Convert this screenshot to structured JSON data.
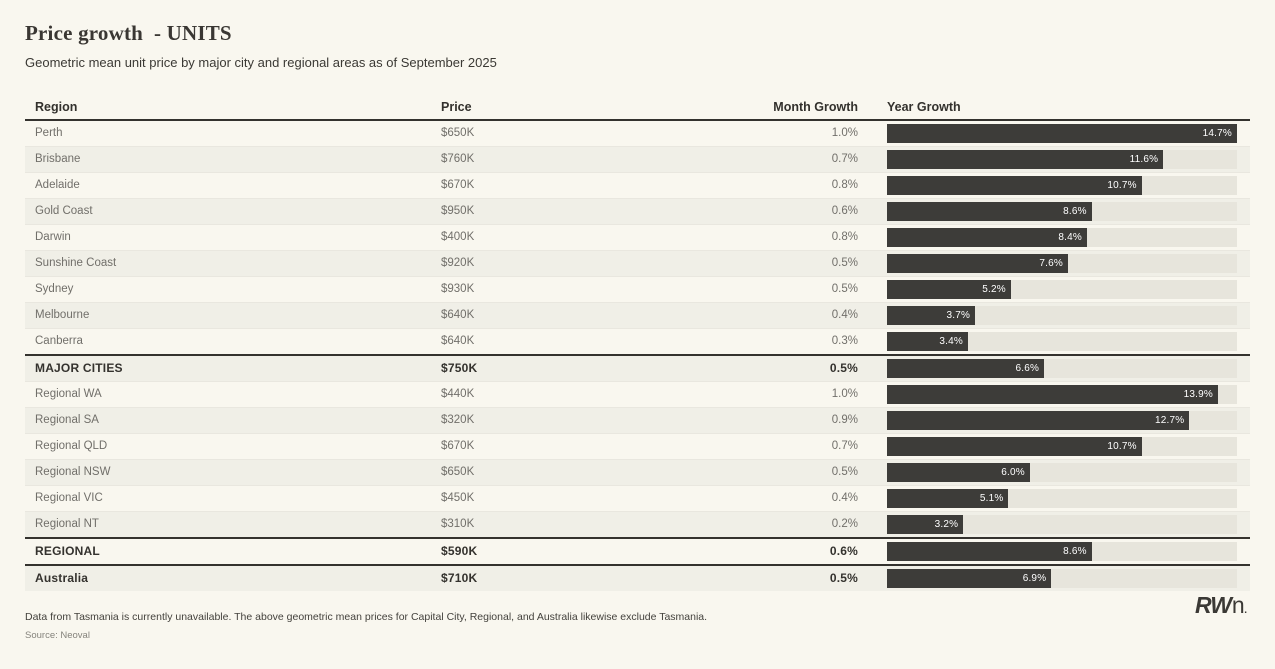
{
  "page": {
    "title": "Price growth  - UNITS",
    "subtitle": "Geometric mean unit price by major city and regional areas as of September 2025",
    "footnote": "Data from Tasmania is currently unavailable. The above geometric mean prices for Capital City, Regional, and Australia likewise exclude Tasmania.",
    "source": "Source: Neoval",
    "logo_bold": "RW",
    "logo_light": "n",
    "logo_dot": "."
  },
  "table": {
    "columns": [
      "Region",
      "Price",
      "Month Growth",
      "Year Growth"
    ],
    "rows": [
      {
        "region": "Perth",
        "price": "$650K",
        "month": "1.0%",
        "year": 14.7,
        "year_label": "14.7%",
        "emphasis": false
      },
      {
        "region": "Brisbane",
        "price": "$760K",
        "month": "0.7%",
        "year": 11.6,
        "year_label": "11.6%",
        "emphasis": false
      },
      {
        "region": "Adelaide",
        "price": "$670K",
        "month": "0.8%",
        "year": 10.7,
        "year_label": "10.7%",
        "emphasis": false
      },
      {
        "region": "Gold Coast",
        "price": "$950K",
        "month": "0.6%",
        "year": 8.6,
        "year_label": "8.6%",
        "emphasis": false
      },
      {
        "region": "Darwin",
        "price": "$400K",
        "month": "0.8%",
        "year": 8.4,
        "year_label": "8.4%",
        "emphasis": false
      },
      {
        "region": "Sunshine Coast",
        "price": "$920K",
        "month": "0.5%",
        "year": 7.6,
        "year_label": "7.6%",
        "emphasis": false
      },
      {
        "region": "Sydney",
        "price": "$930K",
        "month": "0.5%",
        "year": 5.2,
        "year_label": "5.2%",
        "emphasis": false
      },
      {
        "region": "Melbourne",
        "price": "$640K",
        "month": "0.4%",
        "year": 3.7,
        "year_label": "3.7%",
        "emphasis": false
      },
      {
        "region": "Canberra",
        "price": "$640K",
        "month": "0.3%",
        "year": 3.4,
        "year_label": "3.4%",
        "emphasis": false
      },
      {
        "region": "MAJOR CITIES",
        "price": "$750K",
        "month": "0.5%",
        "year": 6.6,
        "year_label": "6.6%",
        "emphasis": true
      },
      {
        "region": "Regional WA",
        "price": "$440K",
        "month": "1.0%",
        "year": 13.9,
        "year_label": "13.9%",
        "emphasis": false
      },
      {
        "region": "Regional SA",
        "price": "$320K",
        "month": "0.9%",
        "year": 12.7,
        "year_label": "12.7%",
        "emphasis": false
      },
      {
        "region": "Regional QLD",
        "price": "$670K",
        "month": "0.7%",
        "year": 10.7,
        "year_label": "10.7%",
        "emphasis": false
      },
      {
        "region": "Regional NSW",
        "price": "$650K",
        "month": "0.5%",
        "year": 6.0,
        "year_label": "6.0%",
        "emphasis": false
      },
      {
        "region": "Regional VIC",
        "price": "$450K",
        "month": "0.4%",
        "year": 5.1,
        "year_label": "5.1%",
        "emphasis": false
      },
      {
        "region": "Regional NT",
        "price": "$310K",
        "month": "0.2%",
        "year": 3.2,
        "year_label": "3.2%",
        "emphasis": false
      },
      {
        "region": "REGIONAL",
        "price": "$590K",
        "month": "0.6%",
        "year": 8.6,
        "year_label": "8.6%",
        "emphasis": true
      },
      {
        "region": "Australia",
        "price": "$710K",
        "month": "0.5%",
        "year": 6.9,
        "year_label": "6.9%",
        "emphasis": true
      }
    ]
  },
  "chart_data": {
    "type": "bar",
    "title": "Price growth - UNITS",
    "subtitle": "Geometric mean unit price by major city and regional areas as of September 2025",
    "orientation": "horizontal",
    "categories": [
      "Perth",
      "Brisbane",
      "Adelaide",
      "Gold Coast",
      "Darwin",
      "Sunshine Coast",
      "Sydney",
      "Melbourne",
      "Canberra",
      "MAJOR CITIES",
      "Regional WA",
      "Regional SA",
      "Regional QLD",
      "Regional NSW",
      "Regional VIC",
      "Regional NT",
      "REGIONAL",
      "Australia"
    ],
    "series": [
      {
        "name": "Price",
        "values": [
          "$650K",
          "$760K",
          "$670K",
          "$950K",
          "$400K",
          "$920K",
          "$930K",
          "$640K",
          "$640K",
          "$750K",
          "$440K",
          "$320K",
          "$670K",
          "$650K",
          "$450K",
          "$310K",
          "$590K",
          "$710K"
        ]
      },
      {
        "name": "Month Growth (%)",
        "values": [
          1.0,
          0.7,
          0.8,
          0.6,
          0.8,
          0.5,
          0.5,
          0.4,
          0.3,
          0.5,
          1.0,
          0.9,
          0.7,
          0.5,
          0.4,
          0.2,
          0.6,
          0.5
        ]
      },
      {
        "name": "Year Growth (%)",
        "values": [
          14.7,
          11.6,
          10.7,
          8.6,
          8.4,
          7.6,
          5.2,
          3.7,
          3.4,
          6.6,
          13.9,
          12.7,
          10.7,
          6.0,
          5.1,
          3.2,
          8.6,
          6.9
        ]
      }
    ],
    "bar_series": "Year Growth (%)",
    "bar_scale_max": 14.7,
    "xlim": [
      0,
      14.7
    ],
    "grid": false,
    "legend": false,
    "bar_color": "#3d3c39",
    "track_color": "#e7e5dc",
    "background_color": "#f9f7ef"
  }
}
